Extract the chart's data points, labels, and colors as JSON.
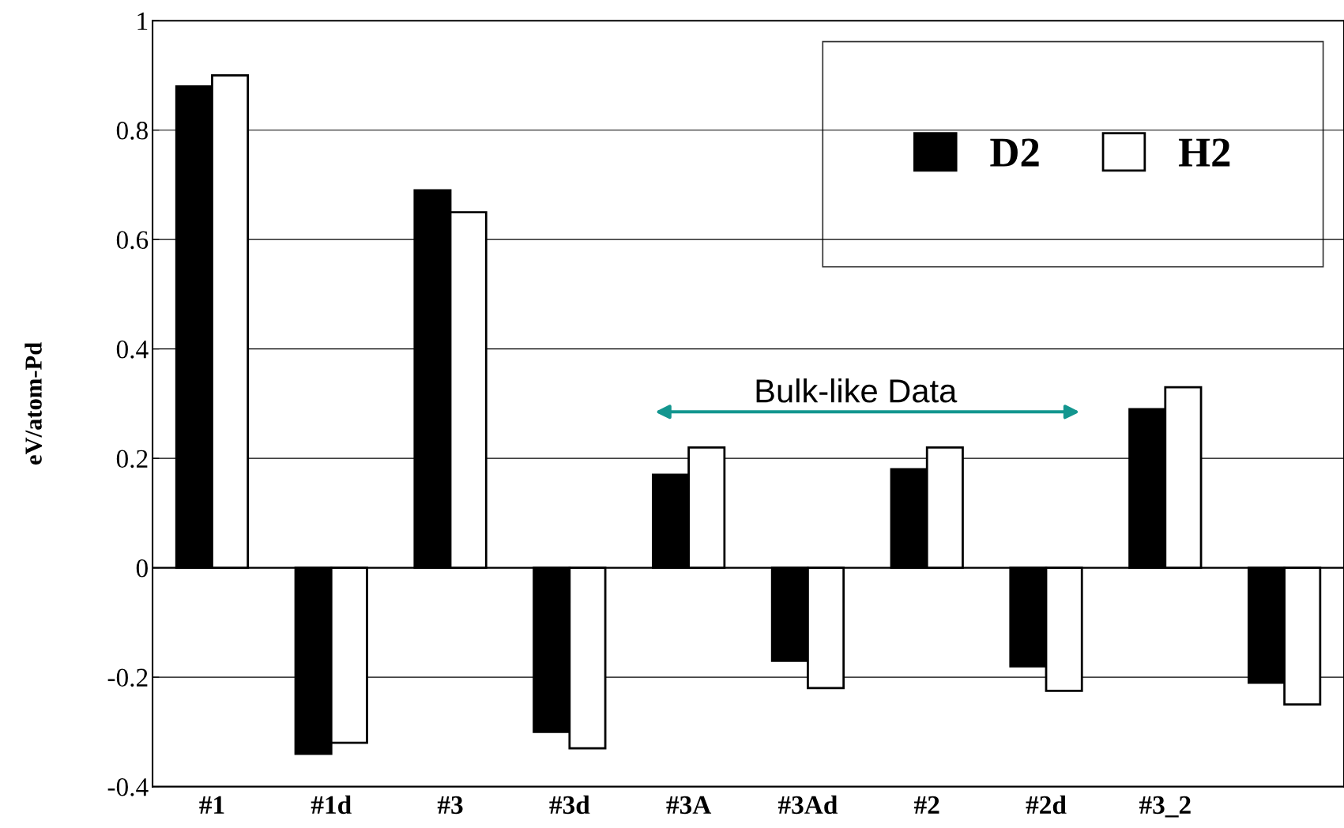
{
  "chart_data": {
    "type": "bar",
    "ylabel": "eV/atom-Pd",
    "categories": [
      "#1",
      "#1d",
      "#3",
      "#3d",
      "#3A",
      "#3Ad",
      "#2",
      "#2d",
      "#3_2",
      null
    ],
    "series": [
      {
        "name": "D2",
        "color": "#000000",
        "values": [
          0.88,
          -0.34,
          0.69,
          -0.3,
          0.17,
          -0.17,
          0.18,
          -0.18,
          0.29,
          -0.21
        ]
      },
      {
        "name": "H2",
        "color": "#ffffff",
        "values": [
          0.9,
          -0.32,
          0.65,
          -0.33,
          0.22,
          -0.22,
          0.22,
          -0.225,
          0.33,
          -0.25
        ]
      }
    ],
    "ylim": [
      -0.4,
      1
    ],
    "yticks": [
      -0.4,
      -0.2,
      0,
      0.2,
      0.4,
      0.6,
      0.8,
      1
    ],
    "grid": "y",
    "legend": "top right",
    "annotations": [
      "Bulk-like Data"
    ]
  }
}
